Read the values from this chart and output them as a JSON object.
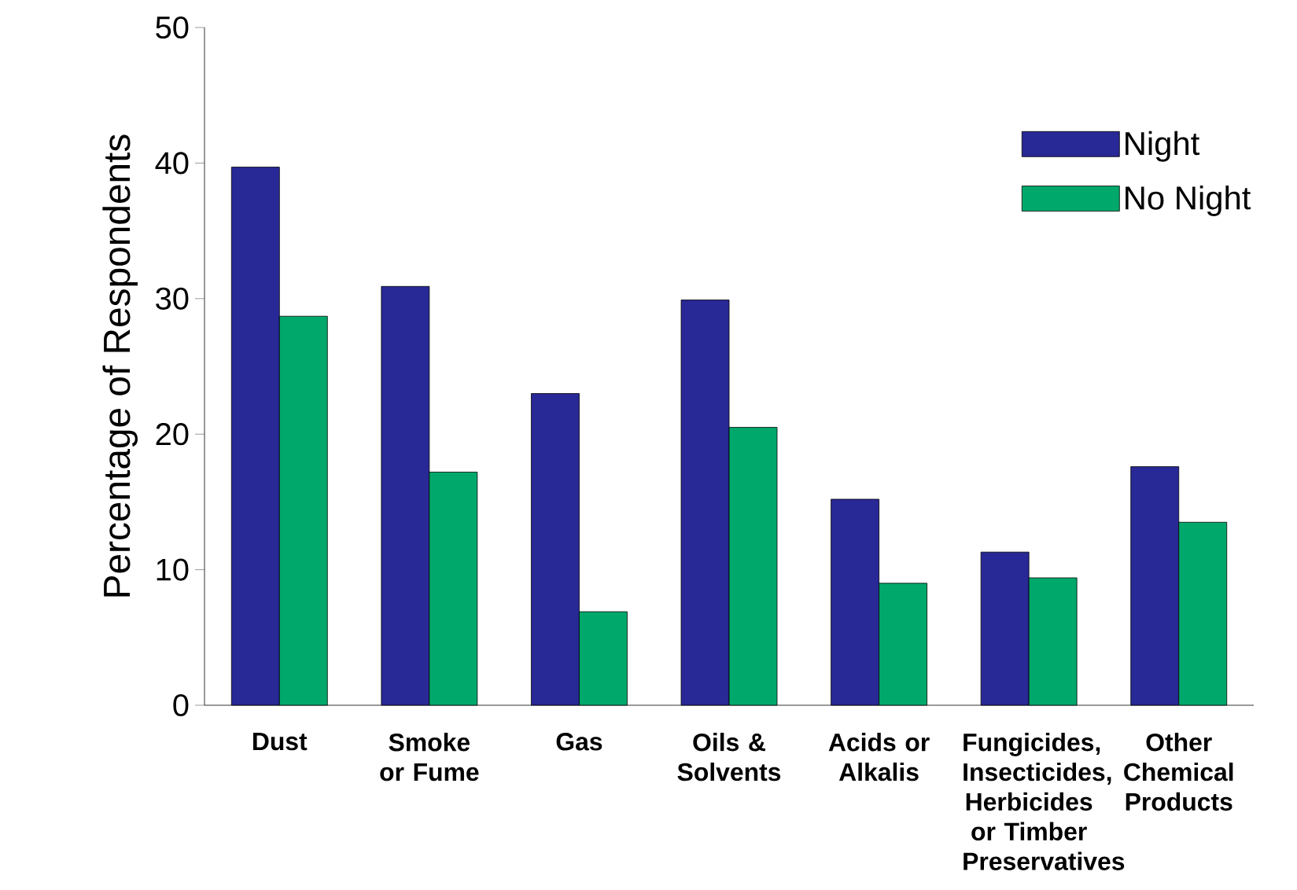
{
  "chart_data": {
    "type": "bar",
    "ylabel": "Percentage of Respondents",
    "categories": [
      "Dust",
      "Smoke or Fume",
      "Gas",
      "Oils & Solvents",
      "Acids or Alkalis",
      "Fungicides, Insecticides, Herbicides or Timber Preservatives",
      "Other Chemical Products"
    ],
    "series": [
      {
        "name": "Night",
        "color": "#282896",
        "values": [
          39.7,
          30.9,
          23.0,
          29.9,
          15.2,
          11.3,
          17.6
        ]
      },
      {
        "name": "No Night",
        "color": "#00a86b",
        "values": [
          28.7,
          17.2,
          6.9,
          20.5,
          9.0,
          9.4,
          13.5
        ]
      }
    ],
    "ylim": [
      0,
      50
    ],
    "yticks": [
      0,
      10,
      20,
      30,
      40,
      50
    ],
    "legend": "top right"
  }
}
